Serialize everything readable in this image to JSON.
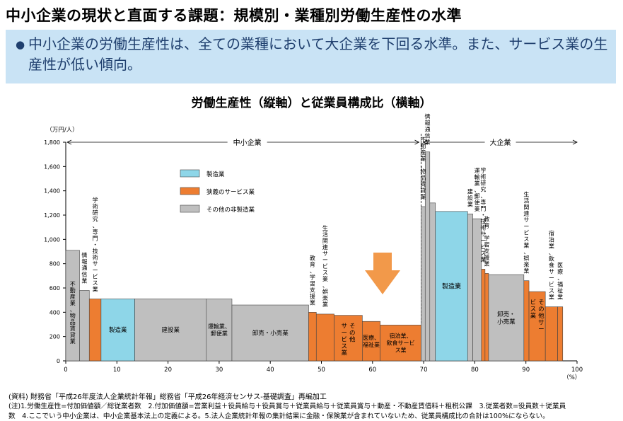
{
  "title": "中小企業の現状と直面する課題：規模別・業種別労働生産性の水準",
  "summary": {
    "bullet": "●",
    "text": "中小企業の労働生産性は、全ての業種において大企業を下回る水準。また、サービス業の生産性が低い傾向。"
  },
  "notes": {
    "source": "(資料) 財務省「平成26年度法人企業統計年報」総務省「平成26年経済センサス-基礎調査」再編加工",
    "note1": "(注)1.労働生産性=付加価値額／総従業者数　2.付加価値額=営業利益＋役員給与＋役員賞与＋従業員給与＋従業員賞与＋動産・不動産賃借料＋租税公課　3.従業者数=役員数＋従業員",
    "note2": "数　4.ここでいう中小企業は、中小企業基本法上の定義による。5.法人企業統計年報の集計結果に金融・保険業が含まれていないため、従業員構成比の合計は100%にならない。"
  },
  "chart_data": {
    "type": "bar",
    "subtype": "variable-width (marimekko)",
    "title": "労働生産性（縦軸）と従業員構成比（横軸）",
    "ylabel": "（万円/人）",
    "xlabel": "（%）",
    "ylim": [
      0,
      1800
    ],
    "yticks": [
      0,
      200,
      400,
      600,
      800,
      1000,
      1200,
      1400,
      1600,
      1800
    ],
    "ytick_labels": [
      "0",
      "200",
      "400",
      "600",
      "800",
      "1,000",
      "1,200",
      "1,400",
      "1,600",
      "1,800"
    ],
    "xlim": [
      0,
      100
    ],
    "xticks": [
      0,
      10,
      20,
      30,
      40,
      50,
      60,
      70,
      80,
      90,
      100
    ],
    "group_labels": {
      "sme": "中小企業",
      "large": "大企業"
    },
    "legend": {
      "position": "upper-left",
      "items": [
        {
          "name": "製造業",
          "color": "#8ed6e8"
        },
        {
          "name": "狭義のサービス業",
          "color": "#ed7d31"
        },
        {
          "name": "その他の非製造業",
          "color": "#bfbfbf"
        }
      ]
    },
    "arrow_color": "#f2994a",
    "bars": [
      {
        "x0": 0.0,
        "x1": 2.7,
        "value": 910,
        "category": "その他の非製造業",
        "label": "不動産業、物品賃貸業",
        "label_pos": "inside"
      },
      {
        "x0": 2.7,
        "x1": 4.6,
        "value": 580,
        "category": "その他の非製造業",
        "label": "情報通信業",
        "label_pos": "above"
      },
      {
        "x0": 4.6,
        "x1": 6.9,
        "value": 510,
        "category": "狭義のサービス業",
        "label": "学術研究、専門・技術サービス業",
        "label_pos": "above"
      },
      {
        "x0": 6.9,
        "x1": 13.5,
        "value": 510,
        "category": "製造業",
        "label": "製造業",
        "label_pos": "inside"
      },
      {
        "x0": 13.5,
        "x1": 27.5,
        "value": 510,
        "category": "その他の非製造業",
        "label": "建設業",
        "label_pos": "inside"
      },
      {
        "x0": 27.5,
        "x1": 32.5,
        "value": 510,
        "category": "その他の非製造業",
        "label": "運輸業、郵便業",
        "label_pos": "inside"
      },
      {
        "x0": 32.5,
        "x1": 47.5,
        "value": 460,
        "category": "その他の非製造業",
        "label": "卸売・小売業",
        "label_pos": "inside"
      },
      {
        "x0": 47.5,
        "x1": 49.0,
        "value": 400,
        "category": "狭義のサービス業",
        "label": "教育、学習支援業",
        "label_pos": "above"
      },
      {
        "x0": 49.0,
        "x1": 52.5,
        "value": 385,
        "category": "狭義のサービス業",
        "label": "生活関連サービス業、娯楽業",
        "label_pos": "above"
      },
      {
        "x0": 52.5,
        "x1": 58.0,
        "value": 375,
        "category": "狭義のサービス業",
        "label": "その他サービス業",
        "label_pos": "inside"
      },
      {
        "x0": 58.0,
        "x1": 61.5,
        "value": 325,
        "category": "狭義のサービス業",
        "label": "医療、福祉業",
        "label_pos": "inside"
      },
      {
        "x0": 61.5,
        "x1": 69.5,
        "value": 295,
        "category": "狭義のサービス業",
        "label": "宿泊業、飲食サービス業",
        "label_pos": "inside"
      },
      {
        "x0": 69.5,
        "x1": 70.3,
        "value": 1270,
        "category": "その他の非製造業",
        "label": "不動産業、物品賃貸業",
        "label_pos": "above"
      },
      {
        "x0": 70.3,
        "x1": 71.2,
        "value": 1720,
        "category": "その他の非製造業",
        "label": "情報通信業",
        "label_pos": "above"
      },
      {
        "x0": 71.2,
        "x1": 72.3,
        "value": 1300,
        "category": "その他の非製造業",
        "label": "",
        "label_pos": "none"
      },
      {
        "x0": 72.3,
        "x1": 78.6,
        "value": 1230,
        "category": "製造業",
        "label": "製造業",
        "label_pos": "inside"
      },
      {
        "x0": 78.6,
        "x1": 79.6,
        "value": 1210,
        "category": "その他の非製造業",
        "label": "建設業",
        "label_pos": "above"
      },
      {
        "x0": 79.6,
        "x1": 81.3,
        "value": 1170,
        "category": "その他の非製造業",
        "label": "運輸業、郵便業",
        "label_pos": "above"
      },
      {
        "x0": 81.3,
        "x1": 82.0,
        "value": 755,
        "category": "狭義のサービス業",
        "label": "学術研究、専門・技術サービス業",
        "label_pos": "above"
      },
      {
        "x0": 82.0,
        "x1": 82.7,
        "value": 720,
        "category": "狭義のサービス業",
        "label": "教育、学習支援業",
        "label_pos": "above"
      },
      {
        "x0": 82.7,
        "x1": 89.6,
        "value": 710,
        "category": "その他の非製造業",
        "label": "卸売・小売業",
        "label_pos": "inside"
      },
      {
        "x0": 89.6,
        "x1": 90.6,
        "value": 660,
        "category": "狭義のサービス業",
        "label": "生活関連サービス業、娯楽業",
        "label_pos": "above"
      },
      {
        "x0": 90.6,
        "x1": 93.8,
        "value": 570,
        "category": "狭義のサービス業",
        "label": "その他サービス業",
        "label_pos": "inside"
      },
      {
        "x0": 93.8,
        "x1": 96.2,
        "value": 445,
        "category": "狭義のサービス業",
        "label": "宿泊業、飲食サービス業",
        "label_pos": "above"
      },
      {
        "x0": 96.2,
        "x1": 97.2,
        "value": 445,
        "category": "狭義のサービス業",
        "label": "医療、福祉業",
        "label_pos": "above"
      }
    ]
  }
}
